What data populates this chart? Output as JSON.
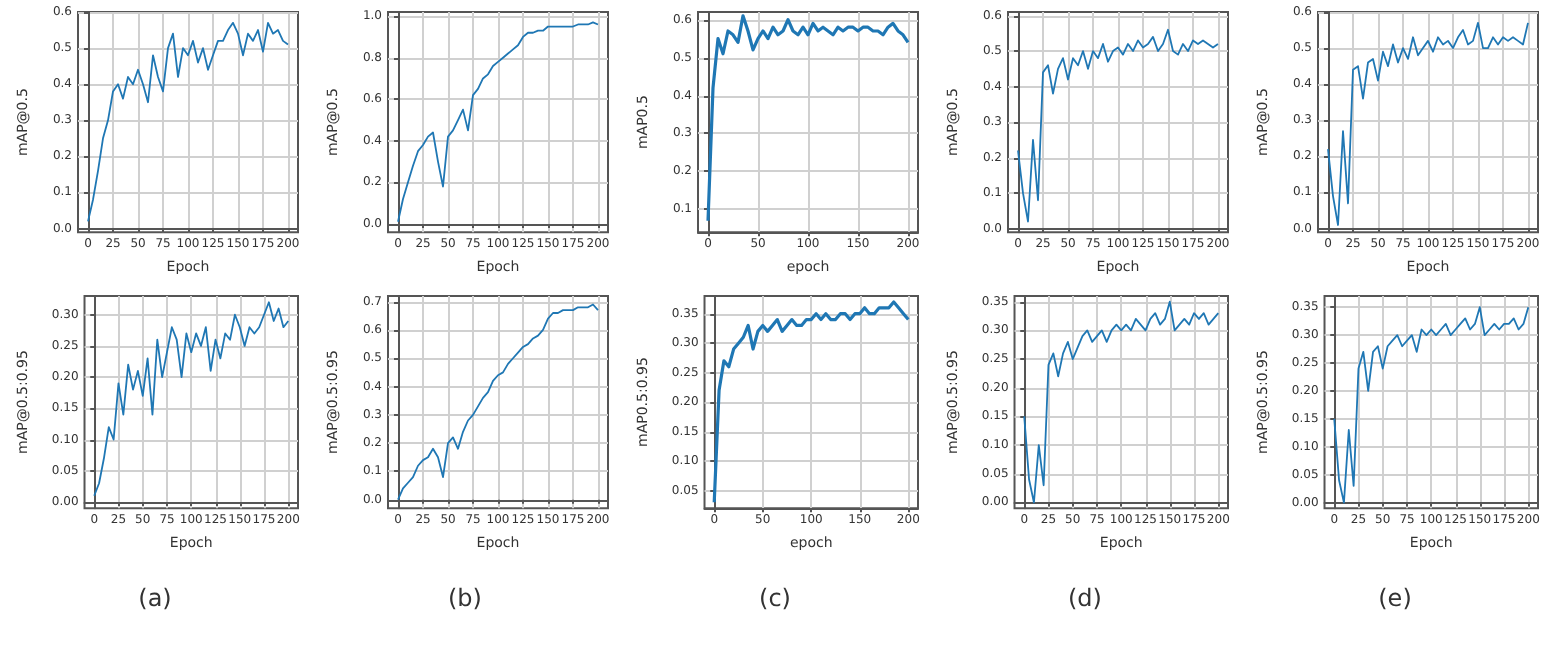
{
  "chart_data": [
    {
      "type": "line",
      "xlabel": "Epoch",
      "ylabel": "mAP@0.5",
      "grid": true,
      "xlim": [
        -10,
        210
      ],
      "ylim": [
        -0.01,
        0.6
      ],
      "xticks": [
        0,
        25,
        50,
        75,
        100,
        125,
        150,
        175,
        200
      ],
      "yticks": [
        {
          "value": 0,
          "label": "0.0"
        },
        {
          "value": 0.1,
          "label": "0.1"
        },
        {
          "value": 0.2,
          "label": "0.2"
        },
        {
          "value": 0.3,
          "label": "0.3"
        },
        {
          "value": 0.4,
          "label": "0.4"
        },
        {
          "value": 0.5,
          "label": "0.5"
        },
        {
          "value": 0.6,
          "label": "0.6"
        }
      ],
      "x": [
        0,
        5,
        10,
        15,
        20,
        25,
        30,
        35,
        40,
        45,
        50,
        55,
        60,
        65,
        70,
        75,
        80,
        85,
        90,
        95,
        100,
        105,
        110,
        115,
        120,
        125,
        130,
        135,
        140,
        145,
        150,
        155,
        160,
        165,
        170,
        175,
        180,
        185,
        190,
        195,
        200
      ],
      "series": [
        {
          "color": "#1f77b4",
          "values": [
            0.02,
            0.08,
            0.16,
            0.25,
            0.3,
            0.38,
            0.4,
            0.36,
            0.42,
            0.4,
            0.44,
            0.4,
            0.35,
            0.48,
            0.42,
            0.38,
            0.5,
            0.54,
            0.42,
            0.5,
            0.48,
            0.52,
            0.46,
            0.5,
            0.44,
            0.48,
            0.52,
            0.52,
            0.55,
            0.57,
            0.54,
            0.48,
            0.54,
            0.52,
            0.55,
            0.49,
            0.57,
            0.54,
            0.55,
            0.52,
            0.51
          ]
        }
      ]
    },
    {
      "type": "line",
      "xlabel": "Epoch",
      "ylabel": "mAP@0.5:0.95",
      "grid": true,
      "xlim": [
        -10,
        210
      ],
      "ylim": [
        -0.01,
        0.33
      ],
      "xticks": [
        0,
        25,
        50,
        75,
        100,
        125,
        150,
        175,
        200
      ],
      "yticks": [
        {
          "value": 0,
          "label": "0.00"
        },
        {
          "value": 0.05,
          "label": "0.05"
        },
        {
          "value": 0.1,
          "label": "0.10"
        },
        {
          "value": 0.15,
          "label": "0.15"
        },
        {
          "value": 0.2,
          "label": "0.20"
        },
        {
          "value": 0.25,
          "label": "0.25"
        },
        {
          "value": 0.3,
          "label": "0.30"
        }
      ],
      "annotations": [
        "(a)"
      ],
      "x": [
        0,
        5,
        10,
        15,
        20,
        25,
        30,
        35,
        40,
        45,
        50,
        55,
        60,
        65,
        70,
        75,
        80,
        85,
        90,
        95,
        100,
        105,
        110,
        115,
        120,
        125,
        130,
        135,
        140,
        145,
        150,
        155,
        160,
        165,
        170,
        175,
        180,
        185,
        190,
        195,
        200
      ],
      "series": [
        {
          "color": "#1f77b4",
          "values": [
            0.01,
            0.03,
            0.07,
            0.12,
            0.1,
            0.19,
            0.14,
            0.22,
            0.18,
            0.21,
            0.17,
            0.23,
            0.14,
            0.26,
            0.2,
            0.24,
            0.28,
            0.26,
            0.2,
            0.27,
            0.24,
            0.27,
            0.25,
            0.28,
            0.21,
            0.26,
            0.23,
            0.27,
            0.26,
            0.3,
            0.28,
            0.25,
            0.28,
            0.27,
            0.28,
            0.3,
            0.32,
            0.29,
            0.31,
            0.28,
            0.29
          ]
        }
      ]
    },
    {
      "type": "line",
      "xlabel": "Epoch",
      "ylabel": "mAP@0.5",
      "grid": true,
      "xlim": [
        -10,
        210
      ],
      "ylim": [
        -0.04,
        1.02
      ],
      "xticks": [
        0,
        25,
        50,
        75,
        100,
        125,
        150,
        175,
        200
      ],
      "yticks": [
        {
          "value": 0,
          "label": "0.0"
        },
        {
          "value": 0.2,
          "label": "0.2"
        },
        {
          "value": 0.4,
          "label": "0.4"
        },
        {
          "value": 0.6,
          "label": "0.6"
        },
        {
          "value": 0.8,
          "label": "0.8"
        },
        {
          "value": 1,
          "label": "1.0"
        }
      ],
      "x": [
        0,
        5,
        10,
        15,
        20,
        25,
        30,
        35,
        40,
        45,
        50,
        55,
        60,
        65,
        70,
        75,
        80,
        85,
        90,
        95,
        100,
        105,
        110,
        115,
        120,
        125,
        130,
        135,
        140,
        145,
        150,
        155,
        160,
        165,
        170,
        175,
        180,
        185,
        190,
        195,
        200
      ],
      "series": [
        {
          "color": "#1f77b4",
          "values": [
            0.01,
            0.12,
            0.2,
            0.28,
            0.35,
            0.38,
            0.42,
            0.44,
            0.3,
            0.18,
            0.42,
            0.45,
            0.5,
            0.55,
            0.45,
            0.62,
            0.65,
            0.7,
            0.72,
            0.76,
            0.78,
            0.8,
            0.82,
            0.84,
            0.86,
            0.9,
            0.92,
            0.92,
            0.93,
            0.93,
            0.95,
            0.95,
            0.95,
            0.95,
            0.95,
            0.95,
            0.96,
            0.96,
            0.96,
            0.97,
            0.96
          ]
        }
      ]
    },
    {
      "type": "line",
      "xlabel": "Epoch",
      "ylabel": "mAP@0.5:0.95",
      "grid": true,
      "xlim": [
        -10,
        210
      ],
      "ylim": [
        -0.03,
        0.72
      ],
      "xticks": [
        0,
        25,
        50,
        75,
        100,
        125,
        150,
        175,
        200
      ],
      "yticks": [
        {
          "value": 0,
          "label": "0.0"
        },
        {
          "value": 0.1,
          "label": "0.1"
        },
        {
          "value": 0.2,
          "label": "0.2"
        },
        {
          "value": 0.3,
          "label": "0.3"
        },
        {
          "value": 0.4,
          "label": "0.4"
        },
        {
          "value": 0.5,
          "label": "0.5"
        },
        {
          "value": 0.6,
          "label": "0.6"
        },
        {
          "value": 0.7,
          "label": "0.7"
        }
      ],
      "annotations": [
        "(b)"
      ],
      "x": [
        0,
        5,
        10,
        15,
        20,
        25,
        30,
        35,
        40,
        45,
        50,
        55,
        60,
        65,
        70,
        75,
        80,
        85,
        90,
        95,
        100,
        105,
        110,
        115,
        120,
        125,
        130,
        135,
        140,
        145,
        150,
        155,
        160,
        165,
        170,
        175,
        180,
        185,
        190,
        195,
        200
      ],
      "series": [
        {
          "color": "#1f77b4",
          "values": [
            0,
            0.04,
            0.06,
            0.08,
            0.12,
            0.14,
            0.15,
            0.18,
            0.15,
            0.08,
            0.2,
            0.22,
            0.18,
            0.24,
            0.28,
            0.3,
            0.33,
            0.36,
            0.38,
            0.42,
            0.44,
            0.45,
            0.48,
            0.5,
            0.52,
            0.54,
            0.55,
            0.57,
            0.58,
            0.6,
            0.64,
            0.66,
            0.66,
            0.67,
            0.67,
            0.67,
            0.68,
            0.68,
            0.68,
            0.69,
            0.67
          ]
        }
      ]
    },
    {
      "type": "line",
      "xlabel": "epoch",
      "ylabel": "mAP0.5",
      "grid": true,
      "xlim": [
        -10,
        210
      ],
      "ylim": [
        0.04,
        0.62
      ],
      "xticks": [
        0,
        50,
        100,
        150,
        200
      ],
      "yticks": [
        0.1,
        0.2,
        0.3,
        0.4,
        0.5,
        0.6
      ],
      "x": [
        0,
        5,
        10,
        15,
        20,
        25,
        30,
        35,
        40,
        45,
        50,
        55,
        60,
        65,
        70,
        75,
        80,
        85,
        90,
        95,
        100,
        105,
        110,
        115,
        120,
        125,
        130,
        135,
        140,
        145,
        150,
        155,
        160,
        165,
        170,
        175,
        180,
        185,
        190,
        195,
        200
      ],
      "series": [
        {
          "color": "#1f77b4",
          "values": [
            0.07,
            0.42,
            0.55,
            0.51,
            0.57,
            0.56,
            0.54,
            0.61,
            0.57,
            0.52,
            0.55,
            0.57,
            0.55,
            0.58,
            0.56,
            0.57,
            0.6,
            0.57,
            0.56,
            0.58,
            0.56,
            0.59,
            0.57,
            0.58,
            0.57,
            0.56,
            0.58,
            0.57,
            0.58,
            0.58,
            0.57,
            0.58,
            0.58,
            0.57,
            0.57,
            0.56,
            0.58,
            0.59,
            0.57,
            0.56,
            0.54
          ]
        }
      ]
    },
    {
      "type": "line",
      "xlabel": "epoch",
      "ylabel": "mAP0.5:0.95",
      "grid": true,
      "xlim": [
        -10,
        210
      ],
      "ylim": [
        0.02,
        0.38
      ],
      "xticks": [
        0,
        50,
        100,
        150,
        200
      ],
      "yticks": [
        0.05,
        {
          "value": 0.1,
          "label": "0.10"
        },
        0.15,
        {
          "value": 0.2,
          "label": "0.20"
        },
        0.25,
        {
          "value": 0.3,
          "label": "0.30"
        },
        0.35
      ],
      "annotations": [
        "(c)"
      ],
      "x": [
        0,
        5,
        10,
        15,
        20,
        25,
        30,
        35,
        40,
        45,
        50,
        55,
        60,
        65,
        70,
        75,
        80,
        85,
        90,
        95,
        100,
        105,
        110,
        115,
        120,
        125,
        130,
        135,
        140,
        145,
        150,
        155,
        160,
        165,
        170,
        175,
        180,
        185,
        190,
        195,
        200
      ],
      "series": [
        {
          "color": "#1f77b4",
          "values": [
            0.03,
            0.22,
            0.27,
            0.26,
            0.29,
            0.3,
            0.31,
            0.33,
            0.29,
            0.32,
            0.33,
            0.32,
            0.33,
            0.34,
            0.32,
            0.33,
            0.34,
            0.33,
            0.33,
            0.34,
            0.34,
            0.35,
            0.34,
            0.35,
            0.34,
            0.34,
            0.35,
            0.35,
            0.34,
            0.35,
            0.35,
            0.36,
            0.35,
            0.35,
            0.36,
            0.36,
            0.36,
            0.37,
            0.36,
            0.35,
            0.34
          ]
        }
      ]
    },
    {
      "type": "line",
      "xlabel": "Epoch",
      "ylabel": "mAP@0.5",
      "grid": true,
      "xlim": [
        -10,
        210
      ],
      "ylim": [
        -0.01,
        0.61
      ],
      "xticks": [
        0,
        25,
        50,
        75,
        100,
        125,
        150,
        175,
        200
      ],
      "yticks": [
        {
          "value": 0,
          "label": "0.0"
        },
        {
          "value": 0.1,
          "label": "0.1"
        },
        {
          "value": 0.2,
          "label": "0.2"
        },
        {
          "value": 0.3,
          "label": "0.3"
        },
        {
          "value": 0.4,
          "label": "0.4"
        },
        {
          "value": 0.5,
          "label": "0.5"
        },
        {
          "value": 0.6,
          "label": "0.6"
        }
      ],
      "x": [
        0,
        5,
        10,
        15,
        20,
        25,
        30,
        35,
        40,
        45,
        50,
        55,
        60,
        65,
        70,
        75,
        80,
        85,
        90,
        95,
        100,
        105,
        110,
        115,
        120,
        125,
        130,
        135,
        140,
        145,
        150,
        155,
        160,
        165,
        170,
        175,
        180,
        185,
        190,
        195,
        200
      ],
      "series": [
        {
          "color": "#1f77b4",
          "values": [
            0.22,
            0.1,
            0.02,
            0.25,
            0.08,
            0.44,
            0.46,
            0.38,
            0.45,
            0.48,
            0.42,
            0.48,
            0.46,
            0.5,
            0.45,
            0.5,
            0.48,
            0.52,
            0.47,
            0.5,
            0.51,
            0.49,
            0.52,
            0.5,
            0.53,
            0.51,
            0.52,
            0.54,
            0.5,
            0.52,
            0.56,
            0.5,
            0.49,
            0.52,
            0.5,
            0.53,
            0.52,
            0.53,
            0.52,
            0.51,
            0.52
          ]
        }
      ]
    },
    {
      "type": "line",
      "xlabel": "Epoch",
      "ylabel": "mAP@0.5:0.95",
      "grid": true,
      "xlim": [
        -10,
        210
      ],
      "ylim": [
        -0.01,
        0.36
      ],
      "xticks": [
        0,
        25,
        50,
        75,
        100,
        125,
        150,
        175,
        200
      ],
      "yticks": [
        {
          "value": 0,
          "label": "0.00"
        },
        {
          "value": 0.05,
          "label": "0.05"
        },
        {
          "value": 0.1,
          "label": "0.10"
        },
        {
          "value": 0.15,
          "label": "0.15"
        },
        {
          "value": 0.2,
          "label": "0.20"
        },
        {
          "value": 0.25,
          "label": "0.25"
        },
        {
          "value": 0.3,
          "label": "0.30"
        },
        {
          "value": 0.35,
          "label": "0.35"
        }
      ],
      "annotations": [
        "(d)"
      ],
      "x": [
        0,
        5,
        10,
        15,
        20,
        25,
        30,
        35,
        40,
        45,
        50,
        55,
        60,
        65,
        70,
        75,
        80,
        85,
        90,
        95,
        100,
        105,
        110,
        115,
        120,
        125,
        130,
        135,
        140,
        145,
        150,
        155,
        160,
        165,
        170,
        175,
        180,
        185,
        190,
        195,
        200
      ],
      "series": [
        {
          "color": "#1f77b4",
          "values": [
            0.15,
            0.04,
            0,
            0.1,
            0.03,
            0.24,
            0.26,
            0.22,
            0.26,
            0.28,
            0.25,
            0.27,
            0.29,
            0.3,
            0.28,
            0.29,
            0.3,
            0.28,
            0.3,
            0.31,
            0.3,
            0.31,
            0.3,
            0.32,
            0.31,
            0.3,
            0.32,
            0.33,
            0.31,
            0.32,
            0.35,
            0.3,
            0.31,
            0.32,
            0.31,
            0.33,
            0.32,
            0.33,
            0.31,
            0.32,
            0.33
          ]
        }
      ]
    },
    {
      "type": "line",
      "xlabel": "Epoch",
      "ylabel": "mAP@0.5",
      "grid": true,
      "xlim": [
        -10,
        210
      ],
      "ylim": [
        -0.01,
        0.6
      ],
      "xticks": [
        0,
        25,
        50,
        75,
        100,
        125,
        150,
        175,
        200
      ],
      "yticks": [
        {
          "value": 0,
          "label": "0.0"
        },
        {
          "value": 0.1,
          "label": "0.1"
        },
        {
          "value": 0.2,
          "label": "0.2"
        },
        {
          "value": 0.3,
          "label": "0.3"
        },
        {
          "value": 0.4,
          "label": "0.4"
        },
        {
          "value": 0.5,
          "label": "0.5"
        },
        {
          "value": 0.6,
          "label": "0.6"
        }
      ],
      "x": [
        0,
        5,
        10,
        15,
        20,
        25,
        30,
        35,
        40,
        45,
        50,
        55,
        60,
        65,
        70,
        75,
        80,
        85,
        90,
        95,
        100,
        105,
        110,
        115,
        120,
        125,
        130,
        135,
        140,
        145,
        150,
        155,
        160,
        165,
        170,
        175,
        180,
        185,
        190,
        195,
        200
      ],
      "series": [
        {
          "color": "#1f77b4",
          "values": [
            0.22,
            0.09,
            0.01,
            0.27,
            0.07,
            0.44,
            0.45,
            0.36,
            0.46,
            0.47,
            0.41,
            0.49,
            0.45,
            0.51,
            0.46,
            0.5,
            0.47,
            0.53,
            0.48,
            0.5,
            0.52,
            0.49,
            0.53,
            0.51,
            0.52,
            0.5,
            0.53,
            0.55,
            0.51,
            0.52,
            0.57,
            0.5,
            0.5,
            0.53,
            0.51,
            0.53,
            0.52,
            0.53,
            0.52,
            0.51,
            0.57
          ]
        }
      ]
    },
    {
      "type": "line",
      "xlabel": "Epoch",
      "ylabel": "mAP@0.5:0.95",
      "grid": true,
      "xlim": [
        -10,
        210
      ],
      "ylim": [
        -0.01,
        0.37
      ],
      "xticks": [
        0,
        25,
        50,
        75,
        100,
        125,
        150,
        175,
        200
      ],
      "yticks": [
        {
          "value": 0,
          "label": "0.00"
        },
        {
          "value": 0.05,
          "label": "0.05"
        },
        {
          "value": 0.1,
          "label": "0.10"
        },
        {
          "value": 0.15,
          "label": "0.15"
        },
        {
          "value": 0.2,
          "label": "0.20"
        },
        {
          "value": 0.25,
          "label": "0.25"
        },
        {
          "value": 0.3,
          "label": "0.30"
        },
        {
          "value": 0.35,
          "label": "0.35"
        }
      ],
      "annotations": [
        "(e)"
      ],
      "x": [
        0,
        5,
        10,
        15,
        20,
        25,
        30,
        35,
        40,
        45,
        50,
        55,
        60,
        65,
        70,
        75,
        80,
        85,
        90,
        95,
        100,
        105,
        110,
        115,
        120,
        125,
        130,
        135,
        140,
        145,
        150,
        155,
        160,
        165,
        170,
        175,
        180,
        185,
        190,
        195,
        200
      ],
      "series": [
        {
          "color": "#1f77b4",
          "values": [
            0.15,
            0.04,
            0,
            0.13,
            0.03,
            0.24,
            0.27,
            0.2,
            0.27,
            0.28,
            0.24,
            0.28,
            0.29,
            0.3,
            0.28,
            0.29,
            0.3,
            0.27,
            0.31,
            0.3,
            0.31,
            0.3,
            0.31,
            0.32,
            0.3,
            0.31,
            0.32,
            0.33,
            0.31,
            0.32,
            0.35,
            0.3,
            0.31,
            0.32,
            0.31,
            0.32,
            0.32,
            0.33,
            0.31,
            0.32,
            0.35
          ]
        }
      ]
    }
  ]
}
